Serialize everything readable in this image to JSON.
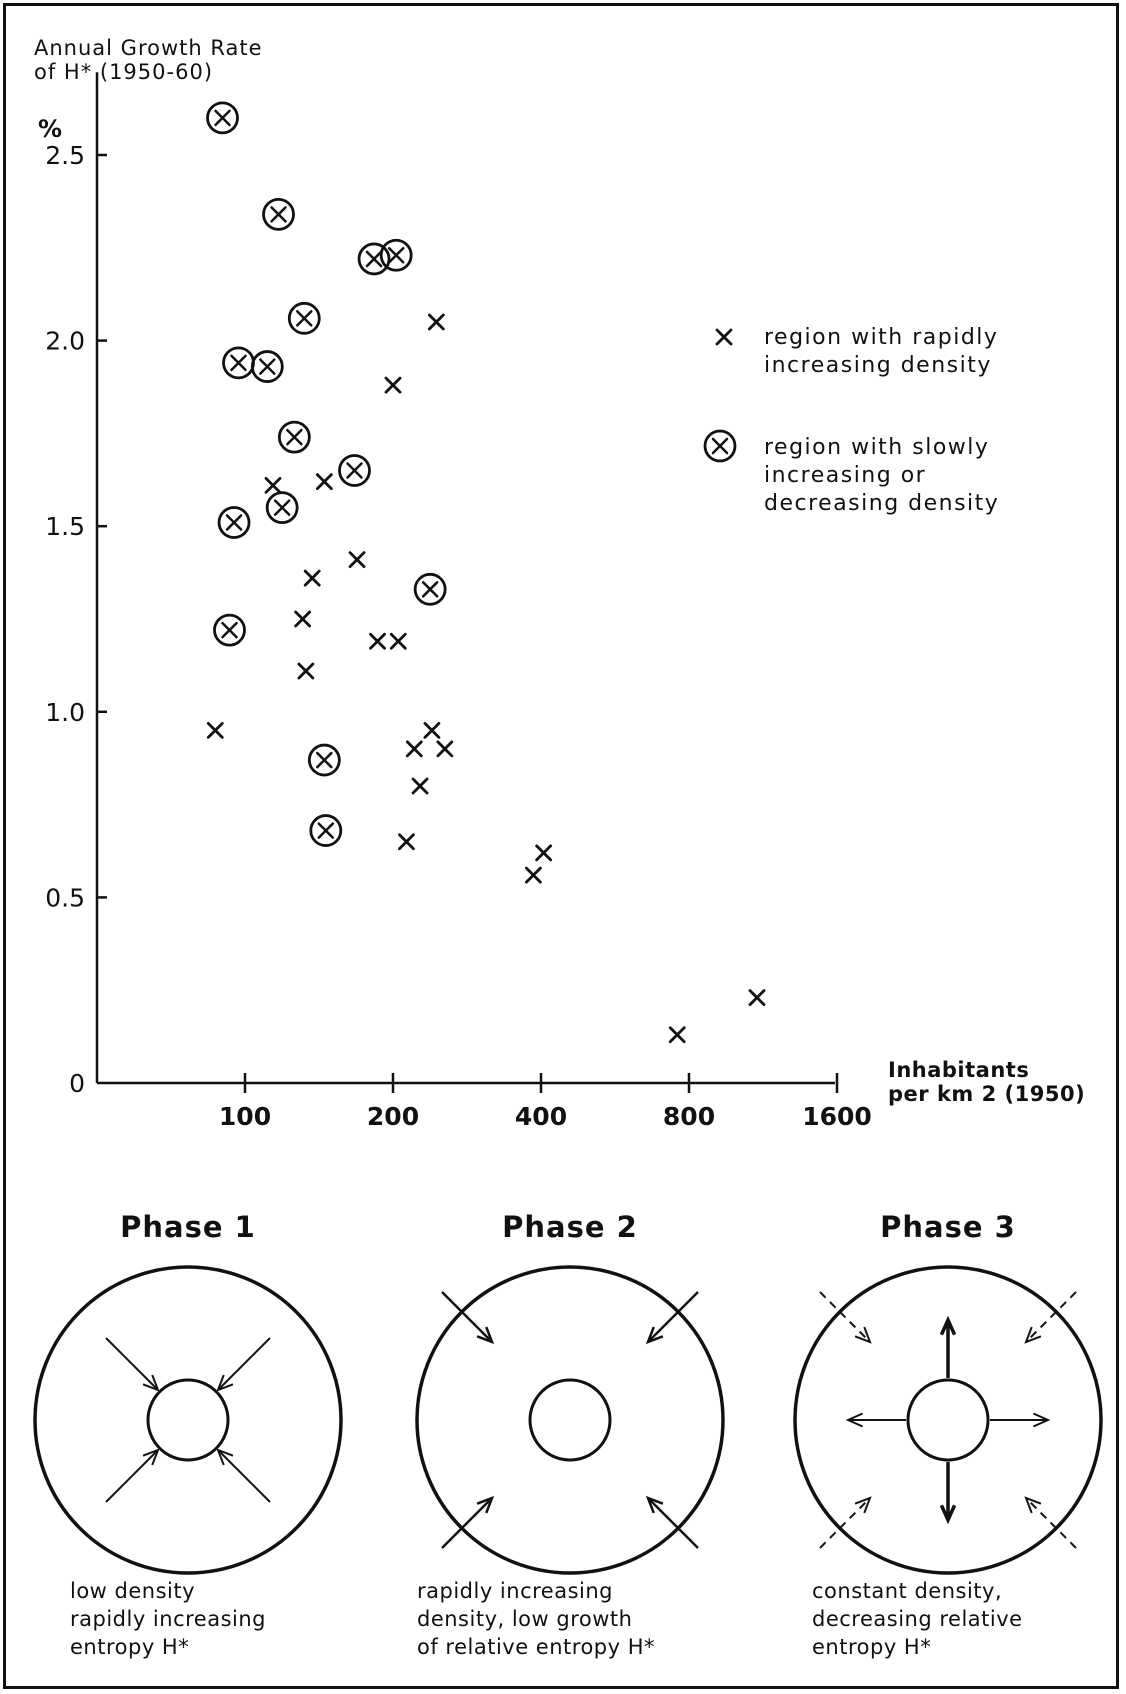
{
  "chart_data": {
    "type": "scatter",
    "ylabel_lines": [
      "Annual Growth Rate",
      "of H* (1950-60)"
    ],
    "yunit": "%",
    "xlabel_lines": [
      "Inhabitants",
      "per km 2 (1950)"
    ],
    "x_scale": "log",
    "x_ticks": [
      100,
      200,
      400,
      800,
      1600
    ],
    "y_ticks": [
      {
        "value": 0,
        "label": "0"
      },
      {
        "value": 0.5,
        "label": "0.5"
      },
      {
        "value": 1.0,
        "label": "1.0"
      },
      {
        "value": 1.5,
        "label": "1.5"
      },
      {
        "value": 2.0,
        "label": "2.0"
      },
      {
        "value": 2.5,
        "label": "2.5"
      }
    ],
    "ylim": [
      0,
      2.75
    ],
    "xlim": [
      60,
      1650
    ],
    "legend": [
      {
        "symbol": "x",
        "lines": [
          "region with rapidly",
          "increasing density"
        ]
      },
      {
        "symbol": "circled-x",
        "lines": [
          "region with slowly",
          "increasing or",
          "decreasing density"
        ]
      }
    ],
    "legend_position": "right",
    "series": [
      {
        "symbol": "x",
        "points": [
          {
            "x": 87,
            "y": 0.95
          },
          {
            "x": 114,
            "y": 1.61
          },
          {
            "x": 131,
            "y": 1.25
          },
          {
            "x": 133,
            "y": 1.11
          },
          {
            "x": 137,
            "y": 1.36
          },
          {
            "x": 145,
            "y": 1.62
          },
          {
            "x": 169,
            "y": 1.41
          },
          {
            "x": 186,
            "y": 1.19
          },
          {
            "x": 200,
            "y": 1.88
          },
          {
            "x": 205,
            "y": 1.19
          },
          {
            "x": 213,
            "y": 0.65
          },
          {
            "x": 221,
            "y": 0.9
          },
          {
            "x": 227,
            "y": 0.8
          },
          {
            "x": 240,
            "y": 0.95
          },
          {
            "x": 245,
            "y": 2.05
          },
          {
            "x": 255,
            "y": 0.9
          },
          {
            "x": 386,
            "y": 0.56
          },
          {
            "x": 405,
            "y": 0.62
          },
          {
            "x": 757,
            "y": 0.13
          },
          {
            "x": 1100,
            "y": 0.23
          }
        ]
      },
      {
        "symbol": "circled-x",
        "points": [
          {
            "x": 90,
            "y": 2.6
          },
          {
            "x": 93,
            "y": 1.22
          },
          {
            "x": 95,
            "y": 1.51
          },
          {
            "x": 97,
            "y": 1.94
          },
          {
            "x": 111,
            "y": 1.93
          },
          {
            "x": 117,
            "y": 2.34
          },
          {
            "x": 119,
            "y": 1.55
          },
          {
            "x": 126,
            "y": 1.74
          },
          {
            "x": 132,
            "y": 2.06
          },
          {
            "x": 145,
            "y": 0.87
          },
          {
            "x": 146,
            "y": 0.68
          },
          {
            "x": 167,
            "y": 1.65
          },
          {
            "x": 183,
            "y": 2.22
          },
          {
            "x": 203,
            "y": 2.23
          },
          {
            "x": 238,
            "y": 1.33
          }
        ]
      }
    ]
  },
  "phases": [
    {
      "title": "Phase 1",
      "caption": [
        "low density",
        "rapidly increasing",
        "entropy H*"
      ]
    },
    {
      "title": "Phase 2",
      "caption": [
        "rapidly increasing",
        "density, low growth",
        "of relative entropy H*"
      ]
    },
    {
      "title": "Phase 3",
      "caption": [
        "constant density,",
        "decreasing relative",
        "entropy H*"
      ]
    }
  ]
}
